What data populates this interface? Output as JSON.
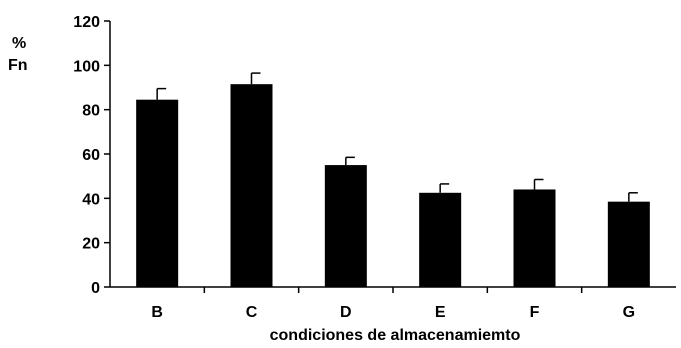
{
  "chart_data": {
    "type": "bar",
    "categories": [
      "B",
      "C",
      "D",
      "E",
      "F",
      "G"
    ],
    "values": [
      84.5,
      91.5,
      55,
      42.5,
      44,
      38.5
    ],
    "errors": [
      5,
      5,
      3.5,
      4,
      4.5,
      4
    ],
    "ylabel_lines": [
      "%",
      "Fn"
    ],
    "xlabel": "condiciones de almacenamiemto",
    "ylim": [
      0,
      120
    ],
    "yticks": [
      "0",
      "20",
      "40",
      "60",
      "80",
      "100",
      "120"
    ],
    "bar_color": "#000000",
    "grid": false,
    "legend": "none"
  }
}
